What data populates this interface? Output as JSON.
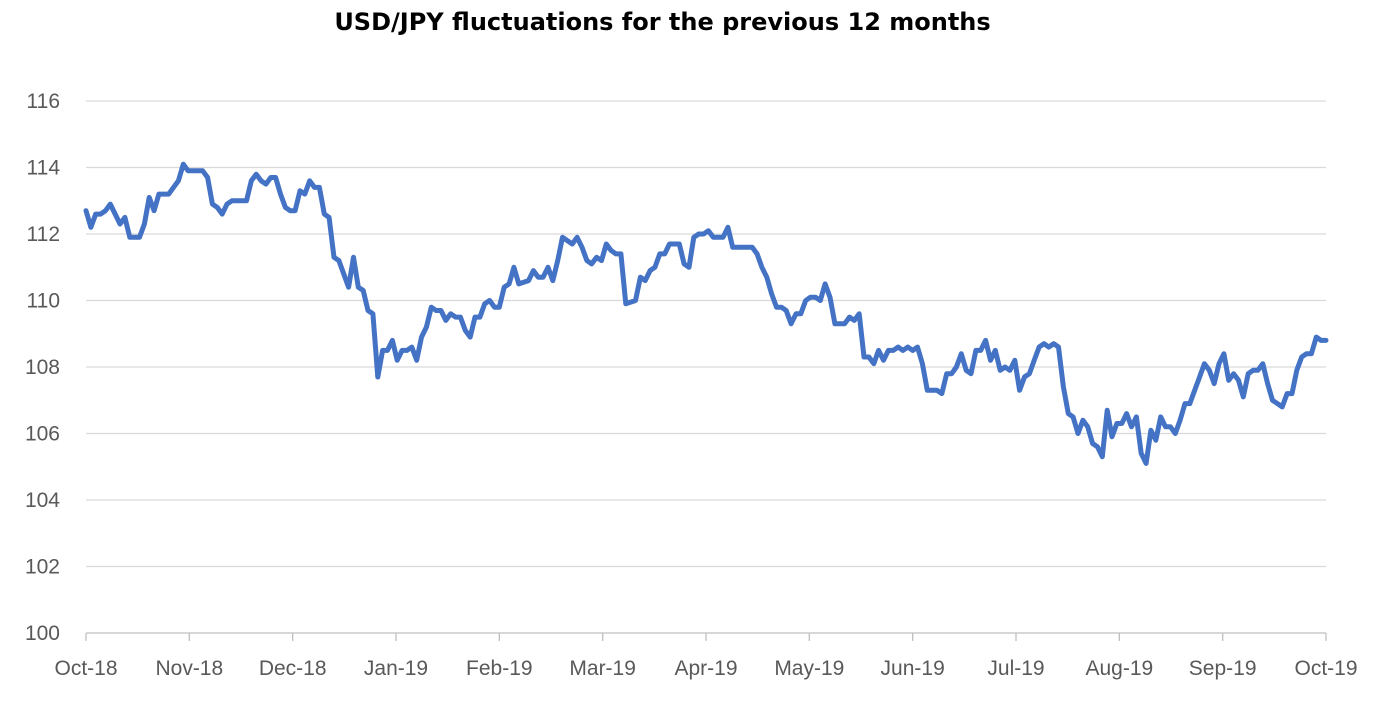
{
  "chart_data": {
    "type": "line",
    "title": "USD/JPY fluctuations for the previous 12 months",
    "xlabel": "",
    "ylabel": "",
    "ylim": [
      100,
      116
    ],
    "yticks": [
      "100",
      "102",
      "104",
      "106",
      "108",
      "110",
      "112",
      "114",
      "116"
    ],
    "xticks": [
      "Oct-18",
      "Nov-18",
      "Dec-18",
      "Jan-19",
      "Feb-19",
      "Mar-19",
      "Apr-19",
      "May-19",
      "Jun-19",
      "Jul-19",
      "Aug-19",
      "Sep-19",
      "Oct-19"
    ],
    "grid": true,
    "legend": "none",
    "line_color": "#4472C4",
    "grid_color": "#D9D9D9",
    "series": [
      {
        "values": [
          [
            0,
            112.7
          ],
          [
            1,
            112.2
          ],
          [
            2,
            112.6
          ],
          [
            3,
            112.6
          ],
          [
            4,
            112.7
          ],
          [
            5,
            112.9
          ],
          [
            7,
            112.3
          ],
          [
            8,
            112.5
          ],
          [
            9,
            111.9
          ],
          [
            11,
            111.9
          ],
          [
            12,
            112.3
          ],
          [
            13,
            113.1
          ],
          [
            14,
            112.7
          ],
          [
            15,
            113.2
          ],
          [
            17,
            113.2
          ],
          [
            18,
            113.4
          ],
          [
            19,
            113.6
          ],
          [
            20,
            114.1
          ],
          [
            21,
            113.9
          ],
          [
            22,
            113.9
          ],
          [
            24,
            113.9
          ],
          [
            25,
            113.7
          ],
          [
            26,
            112.9
          ],
          [
            27,
            112.8
          ],
          [
            28,
            112.6
          ],
          [
            29,
            112.9
          ],
          [
            30,
            113.0
          ],
          [
            31,
            113.0
          ],
          [
            33,
            113.0
          ],
          [
            34,
            113.6
          ],
          [
            35,
            113.8
          ],
          [
            36,
            113.6
          ],
          [
            37,
            113.5
          ],
          [
            38,
            113.7
          ],
          [
            39,
            113.7
          ],
          [
            40,
            113.2
          ],
          [
            41,
            112.8
          ],
          [
            42,
            112.7
          ],
          [
            43,
            112.7
          ],
          [
            44,
            113.3
          ],
          [
            45,
            113.2
          ],
          [
            46,
            113.6
          ],
          [
            47,
            113.4
          ],
          [
            48,
            113.4
          ],
          [
            49,
            112.6
          ],
          [
            50,
            112.5
          ],
          [
            51,
            111.3
          ],
          [
            52,
            111.2
          ],
          [
            53,
            110.8
          ],
          [
            54,
            110.4
          ],
          [
            55,
            111.3
          ],
          [
            56,
            110.4
          ],
          [
            57,
            110.3
          ],
          [
            58,
            109.7
          ],
          [
            59,
            109.6
          ],
          [
            60,
            107.7
          ],
          [
            61,
            108.5
          ],
          [
            62,
            108.5
          ],
          [
            63,
            108.8
          ],
          [
            64,
            108.2
          ],
          [
            65,
            108.5
          ],
          [
            66,
            108.5
          ],
          [
            67,
            108.6
          ],
          [
            68,
            108.2
          ],
          [
            69,
            108.9
          ],
          [
            70,
            109.2
          ],
          [
            71,
            109.8
          ],
          [
            72,
            109.7
          ],
          [
            73,
            109.7
          ],
          [
            74,
            109.4
          ],
          [
            75,
            109.6
          ],
          [
            76,
            109.5
          ],
          [
            77,
            109.5
          ],
          [
            78,
            109.1
          ],
          [
            79,
            108.9
          ],
          [
            80,
            109.5
          ],
          [
            81,
            109.5
          ],
          [
            82,
            109.9
          ],
          [
            83,
            110.0
          ],
          [
            84,
            109.8
          ],
          [
            85,
            109.8
          ],
          [
            86,
            110.4
          ],
          [
            87,
            110.5
          ],
          [
            88,
            111.0
          ],
          [
            89,
            110.5
          ],
          [
            91,
            110.6
          ],
          [
            92,
            110.9
          ],
          [
            93,
            110.7
          ],
          [
            94,
            110.7
          ],
          [
            95,
            111.0
          ],
          [
            96,
            110.6
          ],
          [
            97,
            111.2
          ],
          [
            98,
            111.9
          ],
          [
            99,
            111.8
          ],
          [
            100,
            111.7
          ],
          [
            101,
            111.9
          ],
          [
            102,
            111.6
          ],
          [
            103,
            111.2
          ],
          [
            104,
            111.1
          ],
          [
            105,
            111.3
          ],
          [
            106,
            111.2
          ],
          [
            107,
            111.7
          ],
          [
            108,
            111.5
          ],
          [
            109,
            111.4
          ],
          [
            110,
            111.4
          ],
          [
            111,
            109.9
          ],
          [
            113,
            110.0
          ],
          [
            114,
            110.7
          ],
          [
            115,
            110.6
          ],
          [
            116,
            110.9
          ],
          [
            117,
            111.0
          ],
          [
            118,
            111.4
          ],
          [
            119,
            111.4
          ],
          [
            120,
            111.7
          ],
          [
            121,
            111.7
          ],
          [
            122,
            111.7
          ],
          [
            123,
            111.1
          ],
          [
            124,
            111.0
          ],
          [
            125,
            111.9
          ],
          [
            126,
            112.0
          ],
          [
            127,
            112.0
          ],
          [
            128,
            112.1
          ],
          [
            129,
            111.9
          ],
          [
            130,
            111.9
          ],
          [
            131,
            111.9
          ],
          [
            132,
            112.2
          ],
          [
            133,
            111.6
          ],
          [
            134,
            111.6
          ],
          [
            135,
            111.6
          ],
          [
            136,
            111.6
          ],
          [
            137,
            111.6
          ],
          [
            138,
            111.4
          ],
          [
            139,
            111.0
          ],
          [
            140,
            110.7
          ],
          [
            141,
            110.2
          ],
          [
            142,
            109.8
          ],
          [
            143,
            109.8
          ],
          [
            144,
            109.7
          ],
          [
            145,
            109.3
          ],
          [
            146,
            109.6
          ],
          [
            147,
            109.6
          ],
          [
            148,
            110.0
          ],
          [
            149,
            110.1
          ],
          [
            150,
            110.1
          ],
          [
            151,
            110.0
          ],
          [
            152,
            110.5
          ],
          [
            153,
            110.1
          ],
          [
            154,
            109.3
          ],
          [
            155,
            109.3
          ],
          [
            156,
            109.3
          ],
          [
            157,
            109.5
          ],
          [
            158,
            109.4
          ],
          [
            159,
            109.6
          ],
          [
            160,
            108.3
          ],
          [
            161,
            108.3
          ],
          [
            162,
            108.1
          ],
          [
            163,
            108.5
          ],
          [
            164,
            108.2
          ],
          [
            165,
            108.5
          ],
          [
            166,
            108.5
          ],
          [
            167,
            108.6
          ],
          [
            168,
            108.5
          ],
          [
            169,
            108.6
          ],
          [
            170,
            108.5
          ],
          [
            171,
            108.6
          ],
          [
            172,
            108.1
          ],
          [
            173,
            107.3
          ],
          [
            174,
            107.3
          ],
          [
            175,
            107.3
          ],
          [
            176,
            107.2
          ],
          [
            177,
            107.8
          ],
          [
            178,
            107.8
          ],
          [
            179,
            108.0
          ],
          [
            180,
            108.4
          ],
          [
            181,
            107.9
          ],
          [
            182,
            107.8
          ],
          [
            183,
            108.5
          ],
          [
            184,
            108.5
          ],
          [
            185,
            108.8
          ],
          [
            186,
            108.2
          ],
          [
            187,
            108.5
          ],
          [
            188,
            107.9
          ],
          [
            189,
            108.0
          ],
          [
            190,
            107.9
          ],
          [
            191,
            108.2
          ],
          [
            192,
            107.3
          ],
          [
            193,
            107.7
          ],
          [
            194,
            107.8
          ],
          [
            195,
            108.2
          ],
          [
            196,
            108.6
          ],
          [
            197,
            108.7
          ],
          [
            198,
            108.6
          ],
          [
            199,
            108.7
          ],
          [
            200,
            108.6
          ],
          [
            201,
            107.4
          ],
          [
            202,
            106.6
          ],
          [
            203,
            106.5
          ],
          [
            204,
            106.0
          ],
          [
            205,
            106.4
          ],
          [
            206,
            106.2
          ],
          [
            207,
            105.7
          ],
          [
            208,
            105.6
          ],
          [
            209,
            105.3
          ],
          [
            210,
            106.7
          ],
          [
            211,
            105.9
          ],
          [
            212,
            106.3
          ],
          [
            213,
            106.3
          ],
          [
            214,
            106.6
          ],
          [
            215,
            106.2
          ],
          [
            216,
            106.5
          ],
          [
            217,
            105.4
          ],
          [
            218,
            105.1
          ],
          [
            219,
            106.1
          ],
          [
            220,
            105.8
          ],
          [
            221,
            106.5
          ],
          [
            222,
            106.2
          ],
          [
            223,
            106.2
          ],
          [
            224,
            106.0
          ],
          [
            225,
            106.4
          ],
          [
            226,
            106.9
          ],
          [
            227,
            106.9
          ],
          [
            228,
            107.3
          ],
          [
            229,
            107.7
          ],
          [
            230,
            108.1
          ],
          [
            231,
            107.9
          ],
          [
            232,
            107.5
          ],
          [
            233,
            108.1
          ],
          [
            234,
            108.4
          ],
          [
            235,
            107.6
          ],
          [
            236,
            107.8
          ],
          [
            237,
            107.6
          ],
          [
            238,
            107.1
          ],
          [
            239,
            107.8
          ],
          [
            240,
            107.9
          ],
          [
            241,
            107.9
          ],
          [
            242,
            108.1
          ],
          [
            243,
            107.5
          ],
          [
            244,
            107.0
          ],
          [
            245,
            106.9
          ],
          [
            246,
            106.8
          ],
          [
            247,
            107.2
          ],
          [
            248,
            107.2
          ],
          [
            249,
            107.9
          ],
          [
            250,
            108.3
          ],
          [
            251,
            108.4
          ],
          [
            252,
            108.4
          ],
          [
            253,
            108.9
          ],
          [
            254,
            108.8
          ],
          [
            255,
            108.8
          ]
        ]
      }
    ]
  }
}
